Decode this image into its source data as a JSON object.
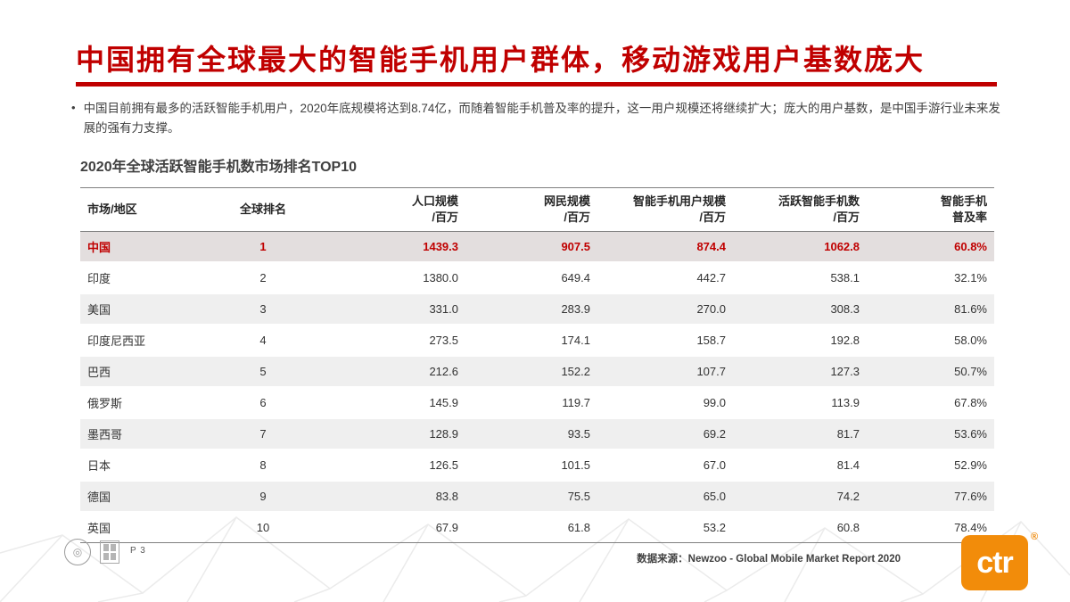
{
  "slide": {
    "title": "中国拥有全球最大的智能手机用户群体，移动游戏用户基数庞大",
    "bullet_marker": "•",
    "bullet_text": "中国目前拥有最多的活跃智能手机用户，2020年底规模将达到8.74亿，而随着智能手机普及率的提升，这一用户规模还将继续扩大；庞大的用户基数，是中国手游行业未来发展的强有力支撑。",
    "table_title": "2020年全球活跃智能手机数市场排名TOP10"
  },
  "chart_data": {
    "type": "table",
    "title": "2020年全球活跃智能手机数市场排名TOP10",
    "columns": [
      "市场/地区",
      "全球排名",
      "人口规模\n/百万",
      "网民规模\n/百万",
      "智能手机用户规模\n/百万",
      "活跃智能手机数\n/百万",
      "智能手机\n普及率"
    ],
    "rows": [
      [
        "中国",
        "1",
        "1439.3",
        "907.5",
        "874.4",
        "1062.8",
        "60.8%"
      ],
      [
        "印度",
        "2",
        "1380.0",
        "649.4",
        "442.7",
        "538.1",
        "32.1%"
      ],
      [
        "美国",
        "3",
        "331.0",
        "283.9",
        "270.0",
        "308.3",
        "81.6%"
      ],
      [
        "印度尼西亚",
        "4",
        "273.5",
        "174.1",
        "158.7",
        "192.8",
        "58.0%"
      ],
      [
        "巴西",
        "5",
        "212.6",
        "152.2",
        "107.7",
        "127.3",
        "50.7%"
      ],
      [
        "俄罗斯",
        "6",
        "145.9",
        "119.7",
        "99.0",
        "113.9",
        "67.8%"
      ],
      [
        "墨西哥",
        "7",
        "128.9",
        "93.5",
        "69.2",
        "81.7",
        "53.6%"
      ],
      [
        "日本",
        "8",
        "126.5",
        "101.5",
        "67.0",
        "81.4",
        "52.9%"
      ],
      [
        "德国",
        "9",
        "83.8",
        "75.5",
        "65.0",
        "74.2",
        "77.6%"
      ],
      [
        "英国",
        "10",
        "67.9",
        "61.8",
        "53.2",
        "60.8",
        "78.4%"
      ]
    ],
    "highlight_row_index": 0
  },
  "footer": {
    "page_label": "P 3",
    "source": "数据来源：Newzoo - Global Mobile Market Report 2020",
    "logo_text": "ctr",
    "logo_reg": "®"
  },
  "colors": {
    "accent_red": "#C00000",
    "logo_orange": "#F28C0A",
    "row_stripe": "#EFEFEF",
    "highlight_row": "#E3DEDE"
  }
}
